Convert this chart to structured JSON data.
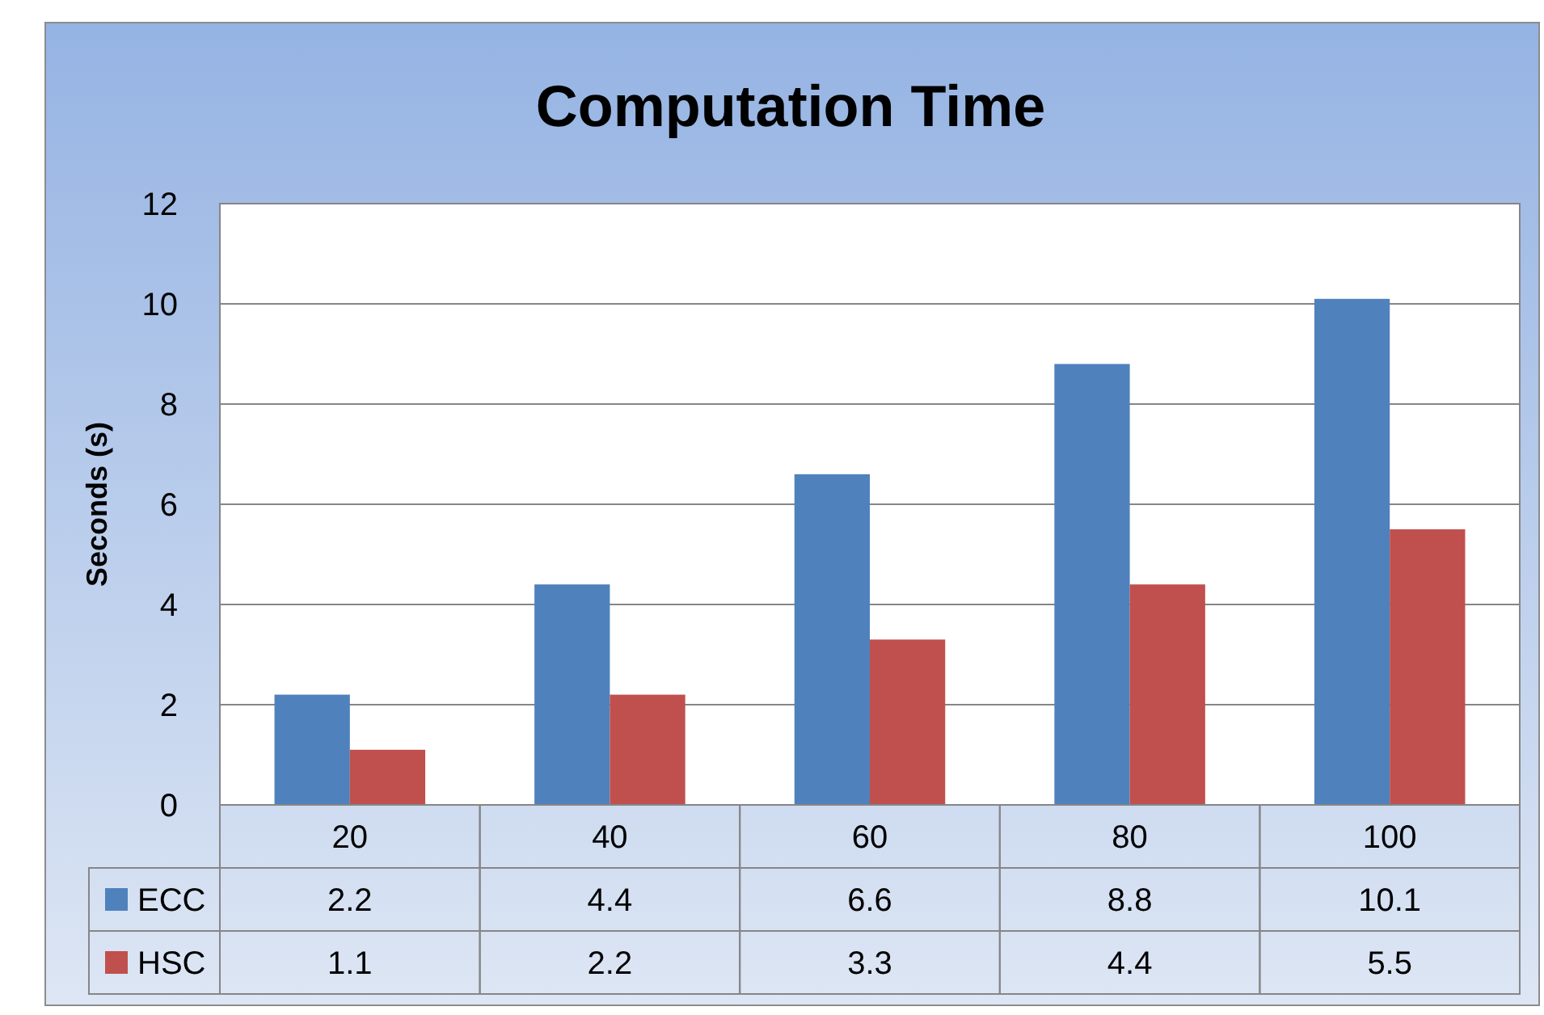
{
  "chart_data": {
    "type": "bar",
    "title": "Computation Time",
    "ylabel": "Seconds (s)",
    "categories": [
      "20",
      "40",
      "60",
      "80",
      "100"
    ],
    "series": [
      {
        "name": "ECC",
        "color": "#4f81bd",
        "values": [
          2.2,
          4.4,
          6.6,
          8.8,
          10.1
        ]
      },
      {
        "name": "HSC",
        "color": "#c0504d",
        "values": [
          1.1,
          2.2,
          3.3,
          4.4,
          5.5
        ]
      }
    ],
    "ylim": [
      0,
      12
    ],
    "yticks": [
      0,
      2,
      4,
      6,
      8,
      10,
      12
    ],
    "grid": "y",
    "legend": "bottom",
    "data_labels": true
  }
}
